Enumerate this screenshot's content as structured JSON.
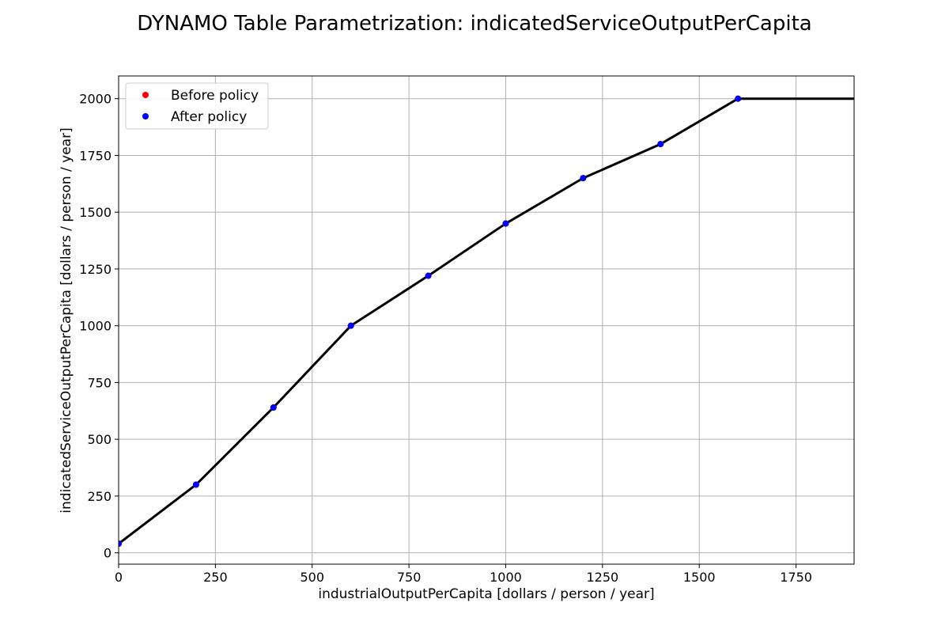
{
  "chart_data": {
    "type": "line",
    "title": "DYNAMO Table Parametrization: indicatedServiceOutputPerCapita",
    "xlabel": "industrialOutputPerCapita [dollars / person / year]",
    "ylabel": "indicatedServiceOutputPerCapita [dollars / person / year]",
    "xlim": [
      0,
      1900
    ],
    "ylim": [
      -50,
      2100
    ],
    "xticks": [
      0,
      250,
      500,
      750,
      1000,
      1250,
      1500,
      1750
    ],
    "yticks": [
      0,
      250,
      500,
      750,
      1000,
      1250,
      1500,
      1750,
      2000
    ],
    "grid": true,
    "legend_position": "upper-left",
    "line": {
      "color": "#000000",
      "x": [
        0,
        200,
        400,
        600,
        800,
        1000,
        1200,
        1400,
        1600,
        1900
      ],
      "y": [
        40,
        300,
        640,
        1000,
        1220,
        1450,
        1650,
        1800,
        2000,
        2000
      ]
    },
    "series": [
      {
        "name": "Before policy",
        "color": "#ff0000",
        "marker": "dot",
        "x": [
          0,
          200,
          400,
          600,
          800,
          1000,
          1200,
          1400,
          1600
        ],
        "y": [
          40,
          300,
          640,
          1000,
          1220,
          1450,
          1650,
          1800,
          2000
        ]
      },
      {
        "name": "After policy",
        "color": "#0000ff",
        "marker": "dot",
        "x": [
          0,
          200,
          400,
          600,
          800,
          1000,
          1200,
          1400,
          1600
        ],
        "y": [
          40,
          300,
          640,
          1000,
          1220,
          1450,
          1650,
          1800,
          2000
        ]
      }
    ]
  }
}
